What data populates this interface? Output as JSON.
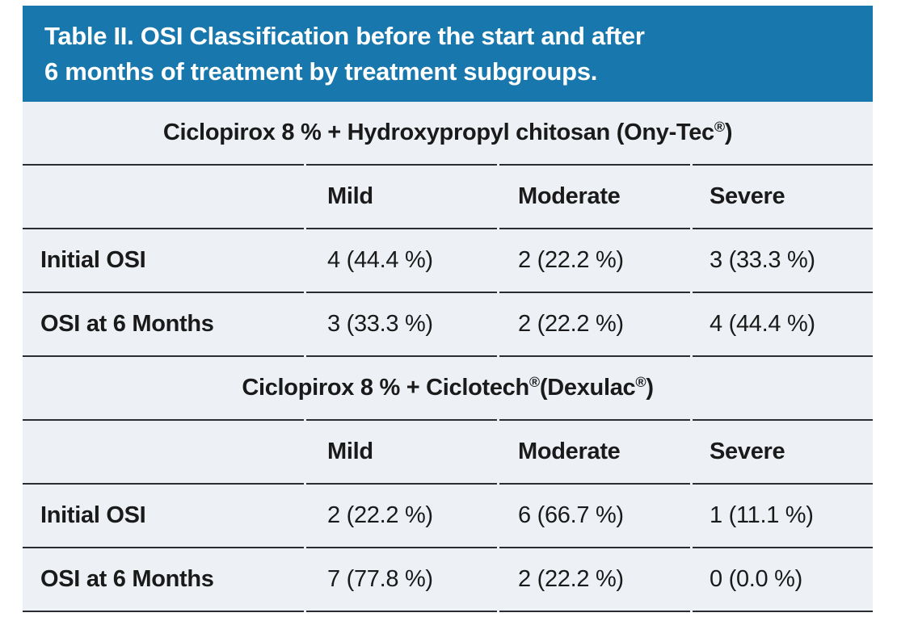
{
  "banner": {
    "line1": "Table II. OSI Classification before the start and after",
    "line2": "6 months of treatment by treatment subgroups."
  },
  "colors": {
    "banner_bg": "#1878AD",
    "banner_text": "#FFFFFF",
    "table_bg": "#EDF1F6",
    "rule_line": "#2A2E33",
    "text": "#1A1A1A"
  },
  "groups": [
    {
      "title_parts": [
        {
          "text": "Ciclopirox 8 % + Hydroxypropyl chitosan (Ony-Tec"
        },
        {
          "sup": "®"
        },
        {
          "text": ")"
        }
      ],
      "columns": [
        "Mild",
        "Moderate",
        "Severe"
      ],
      "rows": [
        {
          "label": "Initial OSI",
          "values": [
            "4 (44.4 %)",
            "2 (22.2 %)",
            "3 (33.3 %)"
          ]
        },
        {
          "label": "OSI at 6 Months",
          "values": [
            "3 (33.3 %)",
            "2 (22.2 %)",
            "4 (44.4 %)"
          ]
        }
      ]
    },
    {
      "title_parts": [
        {
          "text": "Ciclopirox 8 % + Ciclotech"
        },
        {
          "sup": "®"
        },
        {
          "text": " (Dexulac"
        },
        {
          "sup": "®"
        },
        {
          "text": ")"
        }
      ],
      "columns": [
        "Mild",
        "Moderate",
        "Severe"
      ],
      "rows": [
        {
          "label": "Initial OSI",
          "values": [
            "2 (22.2 %)",
            "6 (66.7 %)",
            "1 (11.1 %)"
          ]
        },
        {
          "label": "OSI at 6 Months",
          "values": [
            "7 (77.8 %)",
            "2 (22.2 %)",
            "0 (0.0 %)"
          ]
        }
      ]
    }
  ]
}
